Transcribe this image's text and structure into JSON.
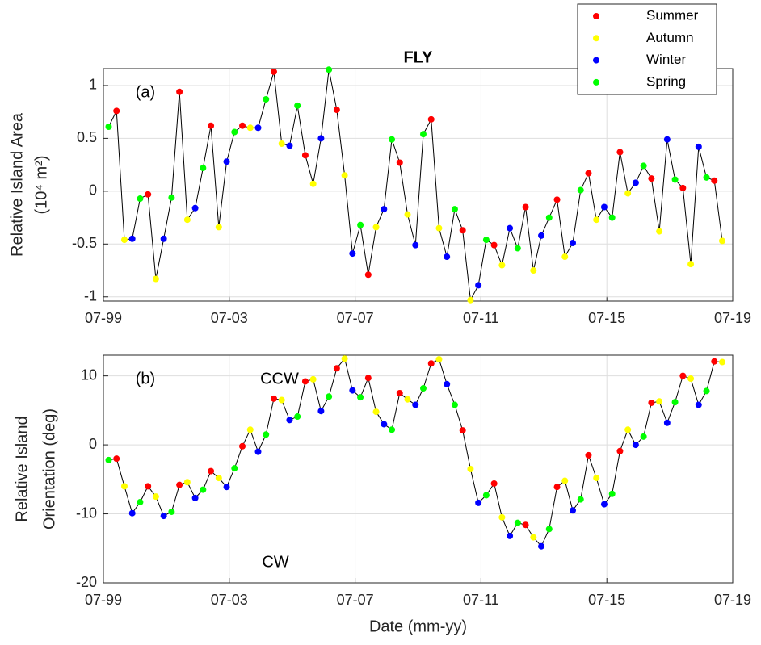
{
  "chart_data": [
    {
      "type": "line",
      "title": "FLY",
      "annotations": [
        "(a)"
      ],
      "ylabel": [
        "Relative Island Area",
        "(10⁴ m²)"
      ],
      "xlim": [
        "1999-07",
        "2019-07"
      ],
      "xticks": [
        {
          "value": "1999-07",
          "label": "07-99"
        },
        {
          "value": "2003-07",
          "label": "07-03"
        },
        {
          "value": "2007-07",
          "label": "07-07"
        },
        {
          "value": "2011-07",
          "label": "07-11"
        },
        {
          "value": "2015-07",
          "label": "07-15"
        },
        {
          "value": "2019-07",
          "label": "07-19"
        }
      ],
      "ylim": [
        -1.04,
        1.16
      ],
      "yticks": [
        -1,
        -0.5,
        0,
        0.5,
        1
      ],
      "grid": true,
      "legend": "upper right",
      "line_color": "#000000",
      "series": [
        {
          "name": "Summer",
          "color": "#ff0000",
          "x": [
            "1999-12",
            "2000-12",
            "2001-12",
            "2002-12",
            "2003-12",
            "2004-12",
            "2005-12",
            "2006-12",
            "2007-12",
            "2008-12",
            "2009-12",
            "2010-12",
            "2011-12",
            "2012-12",
            "2013-12",
            "2014-12",
            "2015-12",
            "2016-12",
            "2017-12",
            "2018-12"
          ],
          "values": [
            0.76,
            -0.03,
            0.94,
            0.62,
            0.62,
            1.13,
            0.34,
            0.77,
            -0.79,
            0.27,
            0.68,
            -0.37,
            -0.51,
            -0.15,
            -0.08,
            0.17,
            0.37,
            0.12,
            0.03,
            0.1
          ]
        },
        {
          "name": "Autumn",
          "color": "#ffff00",
          "x": [
            "2000-03",
            "2001-03",
            "2002-03",
            "2003-03",
            "2004-03",
            "2005-03",
            "2006-03",
            "2007-03",
            "2008-03",
            "2009-03",
            "2010-03",
            "2011-03",
            "2012-03",
            "2013-03",
            "2014-03",
            "2015-03",
            "2016-03",
            "2017-03",
            "2018-03",
            "2019-03"
          ],
          "values": [
            -0.46,
            -0.83,
            -0.27,
            -0.34,
            0.6,
            0.45,
            0.07,
            0.15,
            -0.34,
            -0.22,
            -0.35,
            -1.03,
            -0.7,
            -0.75,
            -0.62,
            -0.27,
            -0.02,
            -0.38,
            -0.69,
            -0.47
          ]
        },
        {
          "name": "Winter",
          "color": "#0000ff",
          "x": [
            "2000-06",
            "2001-06",
            "2002-06",
            "2003-06",
            "2004-06",
            "2005-06",
            "2006-06",
            "2007-06",
            "2008-06",
            "2009-06",
            "2010-06",
            "2011-06",
            "2012-06",
            "2013-06",
            "2014-06",
            "2015-06",
            "2016-06",
            "2017-06",
            "2018-06"
          ],
          "values": [
            -0.45,
            -0.45,
            -0.16,
            0.28,
            0.6,
            0.43,
            0.5,
            -0.59,
            -0.17,
            -0.51,
            -0.62,
            -0.89,
            -0.35,
            -0.42,
            -0.49,
            -0.15,
            0.08,
            0.49,
            0.42
          ]
        },
        {
          "name": "Spring",
          "color": "#00ff00",
          "x": [
            "1999-09",
            "2000-09",
            "2001-09",
            "2002-09",
            "2003-09",
            "2004-09",
            "2005-09",
            "2006-09",
            "2007-09",
            "2008-09",
            "2009-09",
            "2010-09",
            "2011-09",
            "2012-09",
            "2013-09",
            "2014-09",
            "2015-09",
            "2016-09",
            "2017-09",
            "2018-09"
          ],
          "values": [
            0.61,
            -0.07,
            -0.06,
            0.22,
            0.56,
            0.87,
            0.81,
            1.15,
            -0.32,
            0.49,
            0.54,
            -0.17,
            -0.46,
            -0.54,
            -0.25,
            0.01,
            -0.25,
            0.24,
            0.11,
            0.13
          ]
        }
      ]
    },
    {
      "type": "line",
      "annotations": [
        "(b)",
        "CCW",
        "CW"
      ],
      "ylabel": [
        "Relative Island",
        "Orientation (deg)"
      ],
      "xlabel": "Date (mm-yy)",
      "xlim": [
        "1999-07",
        "2019-07"
      ],
      "xticks": [
        {
          "value": "1999-07",
          "label": "07-99"
        },
        {
          "value": "2003-07",
          "label": "07-03"
        },
        {
          "value": "2007-07",
          "label": "07-07"
        },
        {
          "value": "2011-07",
          "label": "07-11"
        },
        {
          "value": "2015-07",
          "label": "07-15"
        },
        {
          "value": "2019-07",
          "label": "07-19"
        }
      ],
      "ylim": [
        -20,
        13
      ],
      "yticks": [
        -20,
        -10,
        0,
        10
      ],
      "grid": true,
      "line_color": "#000000",
      "series": [
        {
          "color": "#ff0000",
          "x": [
            "1999-12",
            "2000-12",
            "2001-12",
            "2002-12",
            "2003-12",
            "2004-12",
            "2005-12",
            "2006-12",
            "2007-12",
            "2008-12",
            "2009-12",
            "2010-12",
            "2011-12",
            "2012-12",
            "2013-12",
            "2014-12",
            "2015-12",
            "2016-12",
            "2017-12",
            "2018-12"
          ],
          "values": [
            -2.0,
            -6.0,
            -5.8,
            -3.8,
            -0.2,
            6.7,
            9.2,
            11.1,
            9.7,
            7.5,
            11.8,
            2.1,
            -5.6,
            -11.6,
            -6.1,
            -1.5,
            -0.9,
            6.1,
            10.0,
            12.1
          ]
        },
        {
          "color": "#ffff00",
          "x": [
            "2000-03",
            "2001-03",
            "2002-03",
            "2003-03",
            "2004-03",
            "2005-03",
            "2006-03",
            "2007-03",
            "2008-03",
            "2009-03",
            "2010-03",
            "2011-03",
            "2012-03",
            "2013-03",
            "2014-03",
            "2015-03",
            "2016-03",
            "2017-03",
            "2018-03",
            "2019-03"
          ],
          "values": [
            -6.0,
            -7.5,
            -5.4,
            -4.8,
            2.2,
            6.5,
            9.5,
            12.5,
            4.8,
            6.6,
            12.4,
            -3.5,
            -10.5,
            -13.4,
            -5.2,
            -4.8,
            2.2,
            6.3,
            9.6,
            12.0
          ]
        },
        {
          "color": "#0000ff",
          "x": [
            "2000-06",
            "2001-06",
            "2002-06",
            "2003-06",
            "2004-06",
            "2005-06",
            "2006-06",
            "2007-06",
            "2008-06",
            "2009-06",
            "2010-06",
            "2011-06",
            "2012-06",
            "2013-06",
            "2014-06",
            "2015-06",
            "2016-06",
            "2017-06",
            "2018-06"
          ],
          "values": [
            -9.9,
            -10.3,
            -7.7,
            -6.1,
            -1.0,
            3.6,
            4.9,
            7.9,
            3.0,
            5.8,
            8.8,
            -8.4,
            -13.2,
            -14.7,
            -9.5,
            -8.6,
            0.0,
            3.2,
            5.8
          ]
        },
        {
          "color": "#00ff00",
          "x": [
            "1999-09",
            "2000-09",
            "2001-09",
            "2002-09",
            "2003-09",
            "2004-09",
            "2005-09",
            "2006-09",
            "2007-09",
            "2008-09",
            "2009-09",
            "2010-09",
            "2011-09",
            "2012-09",
            "2013-09",
            "2014-09",
            "2015-09",
            "2016-09",
            "2017-09",
            "2018-09"
          ],
          "values": [
            -2.2,
            -8.3,
            -9.7,
            -6.5,
            -3.4,
            1.5,
            4.1,
            7.0,
            6.9,
            2.2,
            8.2,
            5.8,
            -7.3,
            -11.3,
            -12.2,
            -7.9,
            -7.1,
            1.2,
            6.2,
            7.8
          ]
        }
      ]
    }
  ]
}
